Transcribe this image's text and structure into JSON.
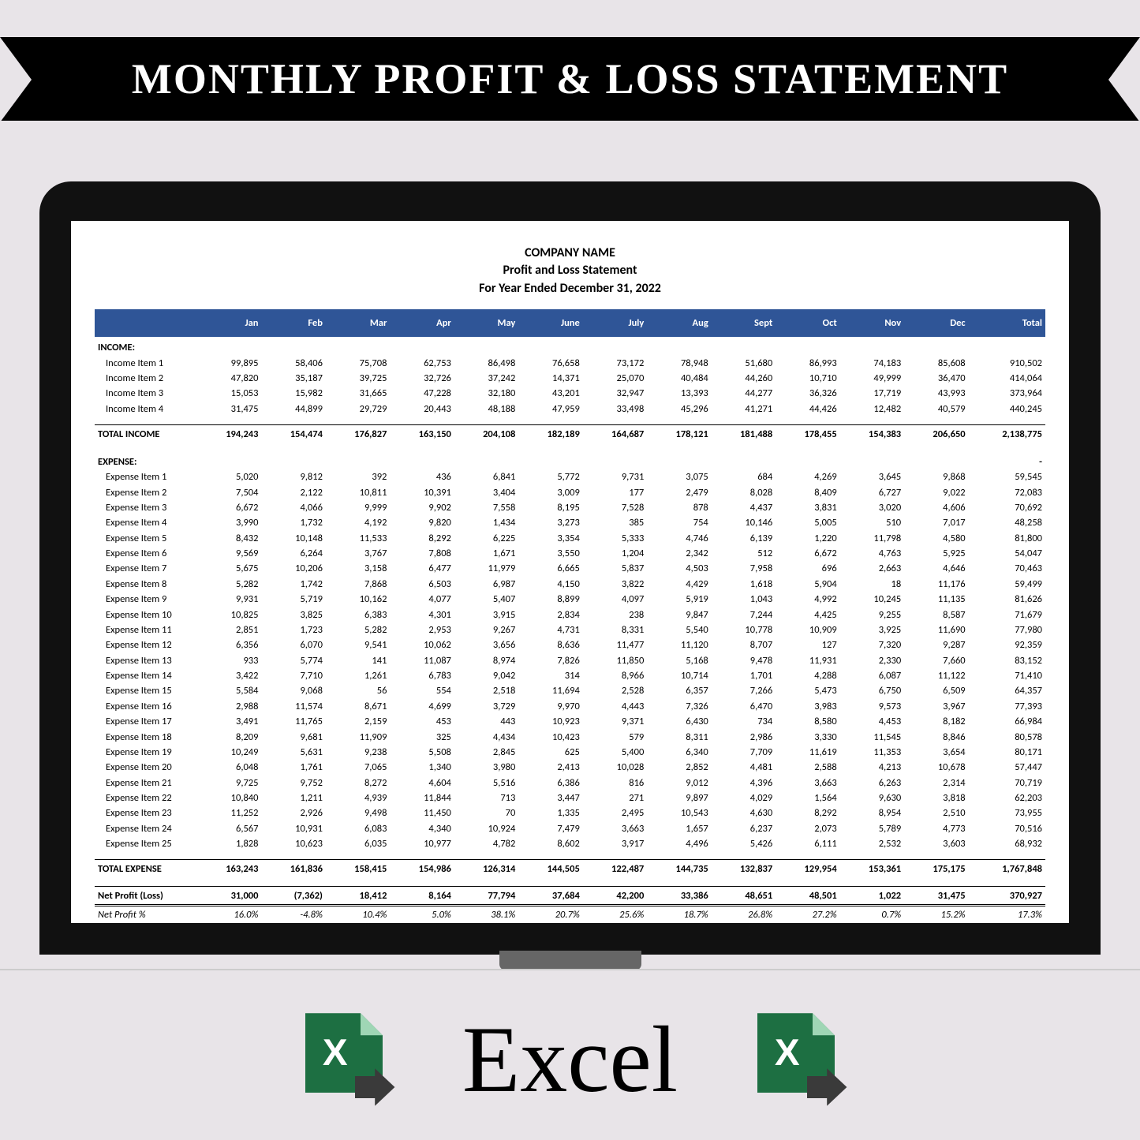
{
  "banner": {
    "title": "MONTHLY PROFIT & LOSS STATEMENT"
  },
  "bottom": {
    "label": "Excel"
  },
  "colors": {
    "background": "#e8e4e8",
    "monitor": "#111111",
    "screen": "#ffffff",
    "header_row": "#2f5597",
    "header_text": "#ffffff",
    "excel_green": "#1d6f42",
    "excel_arrow": "#3a3a3a"
  },
  "sheet": {
    "company": "COMPANY NAME",
    "subtitle": "Profit and Loss Statement",
    "period": "For Year Ended December 31, 2022",
    "columns": [
      "Jan",
      "Feb",
      "Mar",
      "Apr",
      "May",
      "June",
      "July",
      "Aug",
      "Sept",
      "Oct",
      "Nov",
      "Dec",
      "Total"
    ],
    "income_label": "INCOME:",
    "income_items": [
      {
        "label": "Income Item 1",
        "v": [
          "99,895",
          "58,406",
          "75,708",
          "62,753",
          "86,498",
          "76,658",
          "73,172",
          "78,948",
          "51,680",
          "86,993",
          "74,183",
          "85,608",
          "910,502"
        ]
      },
      {
        "label": "Income Item 2",
        "v": [
          "47,820",
          "35,187",
          "39,725",
          "32,726",
          "37,242",
          "14,371",
          "25,070",
          "40,484",
          "44,260",
          "10,710",
          "49,999",
          "36,470",
          "414,064"
        ]
      },
      {
        "label": "Income Item 3",
        "v": [
          "15,053",
          "15,982",
          "31,665",
          "47,228",
          "32,180",
          "43,201",
          "32,947",
          "13,393",
          "44,277",
          "36,326",
          "17,719",
          "43,993",
          "373,964"
        ]
      },
      {
        "label": "Income Item 4",
        "v": [
          "31,475",
          "44,899",
          "29,729",
          "20,443",
          "48,188",
          "47,959",
          "33,498",
          "45,296",
          "41,271",
          "44,426",
          "12,482",
          "40,579",
          "440,245"
        ]
      }
    ],
    "total_income": {
      "label": "TOTAL INCOME",
      "v": [
        "194,243",
        "154,474",
        "176,827",
        "163,150",
        "204,108",
        "182,189",
        "164,687",
        "178,121",
        "181,488",
        "178,455",
        "154,383",
        "206,650",
        "2,138,775"
      ]
    },
    "expense_label": "EXPENSE:",
    "expense_dash": "-",
    "expense_items": [
      {
        "label": "Expense Item 1",
        "v": [
          "5,020",
          "9,812",
          "392",
          "436",
          "6,841",
          "5,772",
          "9,731",
          "3,075",
          "684",
          "4,269",
          "3,645",
          "9,868",
          "59,545"
        ]
      },
      {
        "label": "Expense Item 2",
        "v": [
          "7,504",
          "2,122",
          "10,811",
          "10,391",
          "3,404",
          "3,009",
          "177",
          "2,479",
          "8,028",
          "8,409",
          "6,727",
          "9,022",
          "72,083"
        ]
      },
      {
        "label": "Expense Item 3",
        "v": [
          "6,672",
          "4,066",
          "9,999",
          "9,902",
          "7,558",
          "8,195",
          "7,528",
          "878",
          "4,437",
          "3,831",
          "3,020",
          "4,606",
          "70,692"
        ]
      },
      {
        "label": "Expense Item 4",
        "v": [
          "3,990",
          "1,732",
          "4,192",
          "9,820",
          "1,434",
          "3,273",
          "385",
          "754",
          "10,146",
          "5,005",
          "510",
          "7,017",
          "48,258"
        ]
      },
      {
        "label": "Expense Item 5",
        "v": [
          "8,432",
          "10,148",
          "11,533",
          "8,292",
          "6,225",
          "3,354",
          "5,333",
          "4,746",
          "6,139",
          "1,220",
          "11,798",
          "4,580",
          "81,800"
        ]
      },
      {
        "label": "Expense Item 6",
        "v": [
          "9,569",
          "6,264",
          "3,767",
          "7,808",
          "1,671",
          "3,550",
          "1,204",
          "2,342",
          "512",
          "6,672",
          "4,763",
          "5,925",
          "54,047"
        ]
      },
      {
        "label": "Expense Item 7",
        "v": [
          "5,675",
          "10,206",
          "3,158",
          "6,477",
          "11,979",
          "6,665",
          "5,837",
          "4,503",
          "7,958",
          "696",
          "2,663",
          "4,646",
          "70,463"
        ]
      },
      {
        "label": "Expense Item 8",
        "v": [
          "5,282",
          "1,742",
          "7,868",
          "6,503",
          "6,987",
          "4,150",
          "3,822",
          "4,429",
          "1,618",
          "5,904",
          "18",
          "11,176",
          "59,499"
        ]
      },
      {
        "label": "Expense Item 9",
        "v": [
          "9,931",
          "5,719",
          "10,162",
          "4,077",
          "5,407",
          "8,899",
          "4,097",
          "5,919",
          "1,043",
          "4,992",
          "10,245",
          "11,135",
          "81,626"
        ]
      },
      {
        "label": "Expense Item 10",
        "v": [
          "10,825",
          "3,825",
          "6,383",
          "4,301",
          "3,915",
          "2,834",
          "238",
          "9,847",
          "7,244",
          "4,425",
          "9,255",
          "8,587",
          "71,679"
        ]
      },
      {
        "label": "Expense Item 11",
        "v": [
          "2,851",
          "1,723",
          "5,282",
          "2,953",
          "9,267",
          "4,731",
          "8,331",
          "5,540",
          "10,778",
          "10,909",
          "3,925",
          "11,690",
          "77,980"
        ]
      },
      {
        "label": "Expense Item 12",
        "v": [
          "6,356",
          "6,070",
          "9,541",
          "10,062",
          "3,656",
          "8,636",
          "11,477",
          "11,120",
          "8,707",
          "127",
          "7,320",
          "9,287",
          "92,359"
        ]
      },
      {
        "label": "Expense Item 13",
        "v": [
          "933",
          "5,774",
          "141",
          "11,087",
          "8,974",
          "7,826",
          "11,850",
          "5,168",
          "9,478",
          "11,931",
          "2,330",
          "7,660",
          "83,152"
        ]
      },
      {
        "label": "Expense Item 14",
        "v": [
          "3,422",
          "7,710",
          "1,261",
          "6,783",
          "9,042",
          "314",
          "8,966",
          "10,714",
          "1,701",
          "4,288",
          "6,087",
          "11,122",
          "71,410"
        ]
      },
      {
        "label": "Expense Item 15",
        "v": [
          "5,584",
          "9,068",
          "56",
          "554",
          "2,518",
          "11,694",
          "2,528",
          "6,357",
          "7,266",
          "5,473",
          "6,750",
          "6,509",
          "64,357"
        ]
      },
      {
        "label": "Expense Item 16",
        "v": [
          "2,988",
          "11,574",
          "8,671",
          "4,699",
          "3,729",
          "9,970",
          "4,443",
          "7,326",
          "6,470",
          "3,983",
          "9,573",
          "3,967",
          "77,393"
        ]
      },
      {
        "label": "Expense Item 17",
        "v": [
          "3,491",
          "11,765",
          "2,159",
          "453",
          "443",
          "10,923",
          "9,371",
          "6,430",
          "734",
          "8,580",
          "4,453",
          "8,182",
          "66,984"
        ]
      },
      {
        "label": "Expense Item 18",
        "v": [
          "8,209",
          "9,681",
          "11,909",
          "325",
          "4,434",
          "10,423",
          "579",
          "8,311",
          "2,986",
          "3,330",
          "11,545",
          "8,846",
          "80,578"
        ]
      },
      {
        "label": "Expense Item 19",
        "v": [
          "10,249",
          "5,631",
          "9,238",
          "5,508",
          "2,845",
          "625",
          "5,400",
          "6,340",
          "7,709",
          "11,619",
          "11,353",
          "3,654",
          "80,171"
        ]
      },
      {
        "label": "Expense Item 20",
        "v": [
          "6,048",
          "1,761",
          "7,065",
          "1,340",
          "3,980",
          "2,413",
          "10,028",
          "2,852",
          "4,481",
          "2,588",
          "4,213",
          "10,678",
          "57,447"
        ]
      },
      {
        "label": "Expense Item 21",
        "v": [
          "9,725",
          "9,752",
          "8,272",
          "4,604",
          "5,516",
          "6,386",
          "816",
          "9,012",
          "4,396",
          "3,663",
          "6,263",
          "2,314",
          "70,719"
        ]
      },
      {
        "label": "Expense Item 22",
        "v": [
          "10,840",
          "1,211",
          "4,939",
          "11,844",
          "713",
          "3,447",
          "271",
          "9,897",
          "4,029",
          "1,564",
          "9,630",
          "3,818",
          "62,203"
        ]
      },
      {
        "label": "Expense Item 23",
        "v": [
          "11,252",
          "2,926",
          "9,498",
          "11,450",
          "70",
          "1,335",
          "2,495",
          "10,543",
          "4,630",
          "8,292",
          "8,954",
          "2,510",
          "73,955"
        ]
      },
      {
        "label": "Expense Item 24",
        "v": [
          "6,567",
          "10,931",
          "6,083",
          "4,340",
          "10,924",
          "7,479",
          "3,663",
          "1,657",
          "6,237",
          "2,073",
          "5,789",
          "4,773",
          "70,516"
        ]
      },
      {
        "label": "Expense Item 25",
        "v": [
          "1,828",
          "10,623",
          "6,035",
          "10,977",
          "4,782",
          "8,602",
          "3,917",
          "4,496",
          "5,426",
          "6,111",
          "2,532",
          "3,603",
          "68,932"
        ]
      }
    ],
    "total_expense": {
      "label": "TOTAL EXPENSE",
      "v": [
        "163,243",
        "161,836",
        "158,415",
        "154,986",
        "126,314",
        "144,505",
        "122,487",
        "144,735",
        "132,837",
        "129,954",
        "153,361",
        "175,175",
        "1,767,848"
      ]
    },
    "net_profit": {
      "label": "Net Profit (Loss)",
      "v": [
        "31,000",
        "(7,362)",
        "18,412",
        "8,164",
        "77,794",
        "37,684",
        "42,200",
        "33,386",
        "48,651",
        "48,501",
        "1,022",
        "31,475",
        "370,927"
      ]
    },
    "net_pct": {
      "label": "Net Profit %",
      "v": [
        "16.0%",
        "-4.8%",
        "10.4%",
        "5.0%",
        "38.1%",
        "20.7%",
        "25.6%",
        "18.7%",
        "26.8%",
        "27.2%",
        "0.7%",
        "15.2%",
        "17.3%"
      ]
    }
  }
}
